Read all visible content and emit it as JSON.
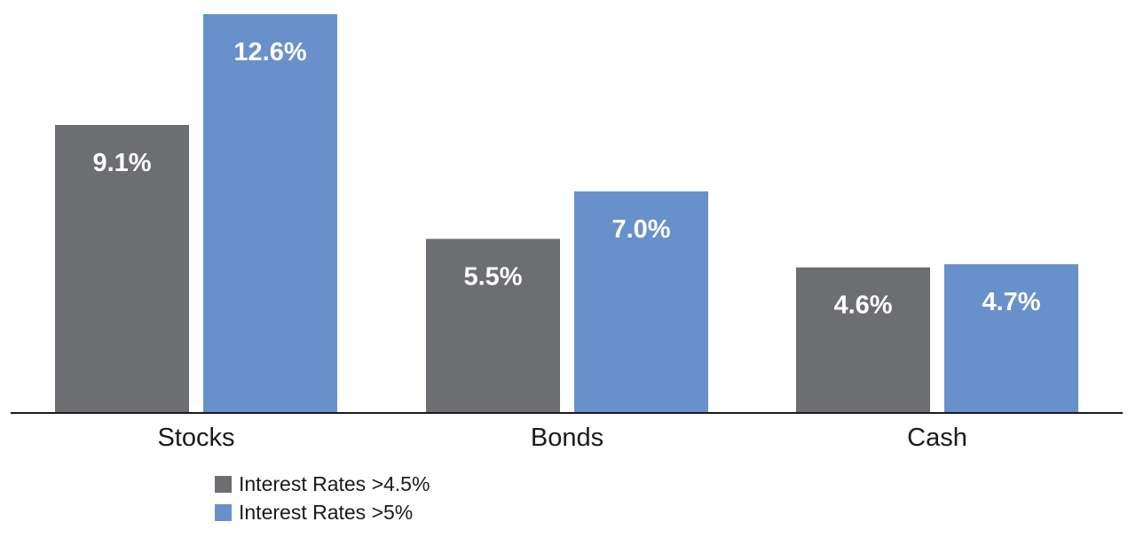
{
  "chart_data": {
    "type": "bar",
    "categories": [
      "Stocks",
      "Bonds",
      "Cash"
    ],
    "series": [
      {
        "name": "Interest Rates >4.5%",
        "values": [
          9.1,
          5.5,
          4.6
        ],
        "labels": [
          "9.1%",
          "5.5%",
          "4.6%"
        ],
        "color": "#6d6e71"
      },
      {
        "name": "Interest Rates >5%",
        "values": [
          12.6,
          7.0,
          4.7
        ],
        "labels": [
          "12.6%",
          "7.0%",
          "4.7%"
        ],
        "color": "#6890cb"
      }
    ],
    "title": "",
    "xlabel": "",
    "ylabel": "",
    "ylim": [
      0,
      12.6
    ],
    "grid": false,
    "legend_position": "bottom-left"
  }
}
